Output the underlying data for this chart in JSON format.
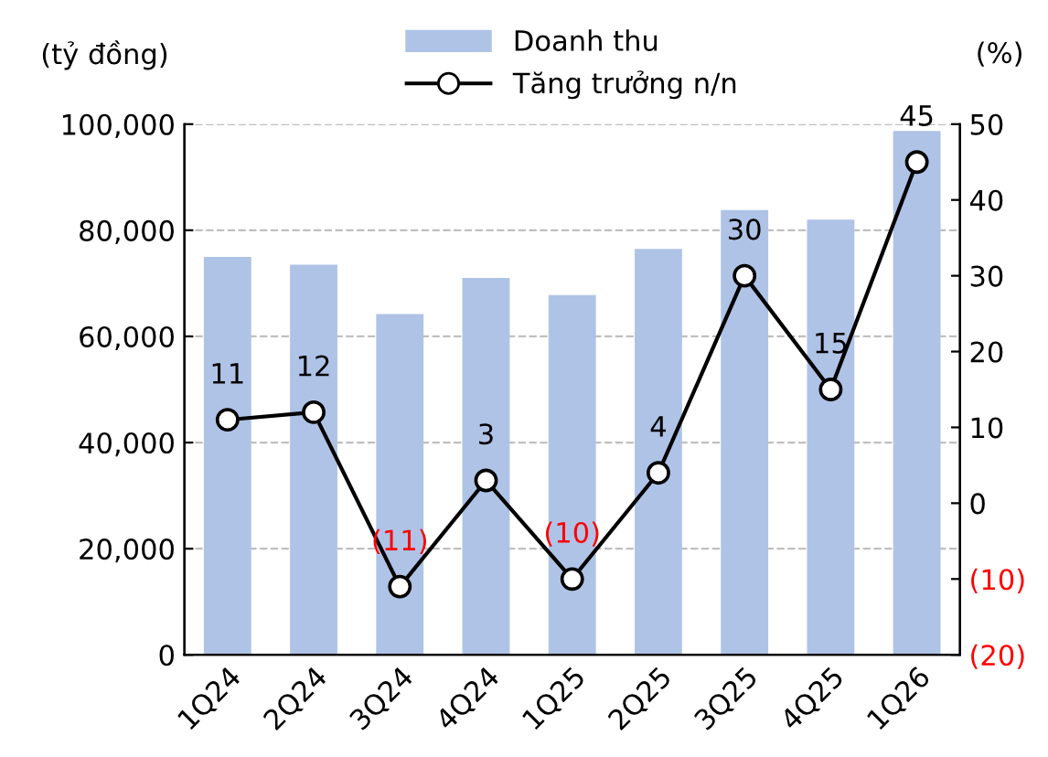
{
  "chart_data": {
    "type": "bar",
    "categories": [
      "1Q24",
      "2Q24",
      "3Q24",
      "4Q24",
      "1Q25",
      "2Q25",
      "3Q25",
      "4Q25",
      "1Q26"
    ],
    "ylabel": "(tỷ đồng)",
    "y2label": "(%)",
    "series": [
      {
        "name": "Doanh thu",
        "color": "#aec3e6",
        "values": [
          75000,
          73500,
          64200,
          71000,
          67800,
          76500,
          83800,
          82000,
          98700
        ]
      },
      {
        "name": "Tăng trưởng n/n",
        "type": "line",
        "axis": "y2",
        "color": "#000000",
        "marker": "circle",
        "line_style": "solid",
        "values": [
          11,
          12,
          -11,
          3,
          -10,
          4,
          30,
          15,
          45
        ],
        "value_labels": [
          "11",
          "12",
          "(11)",
          "3",
          "(10)",
          "4",
          "30",
          "15",
          "45"
        ]
      }
    ],
    "ylim": [
      0,
      100000
    ],
    "yticks": [
      {
        "value": 0,
        "label": "0"
      },
      {
        "value": 20000,
        "label": "20,000"
      },
      {
        "value": 40000,
        "label": "40,000"
      },
      {
        "value": 60000,
        "label": "60,000"
      },
      {
        "value": 80000,
        "label": "80,000"
      },
      {
        "value": 100000,
        "label": "100,000"
      }
    ],
    "y2lim": [
      -20,
      50
    ],
    "y2ticks": [
      {
        "value": -20,
        "label": "(20)"
      },
      {
        "value": -10,
        "label": "(10)"
      },
      0,
      10,
      20,
      30,
      40,
      50
    ],
    "grid": "y",
    "legend": "top"
  }
}
